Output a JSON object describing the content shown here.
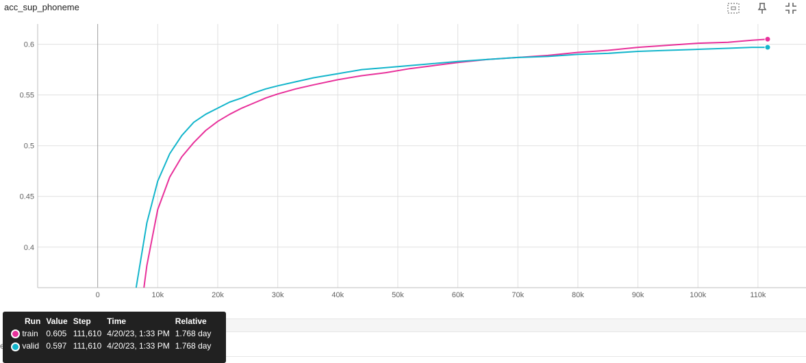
{
  "title": "acc_sup_phoneme",
  "toolbar": {
    "icons": [
      "fit-to-data-icon",
      "pin-icon",
      "fullscreen-icon"
    ]
  },
  "colors": {
    "train": "#e8309a",
    "valid": "#12b5cb"
  },
  "chart_data": {
    "type": "line",
    "xlim": [
      -10000,
      118000
    ],
    "ylim": [
      0.36,
      0.62
    ],
    "xticks": [
      0,
      10000,
      20000,
      30000,
      40000,
      50000,
      60000,
      70000,
      80000,
      90000,
      100000,
      110000
    ],
    "xtick_labels": [
      "0",
      "10k",
      "20k",
      "30k",
      "40k",
      "50k",
      "60k",
      "70k",
      "80k",
      "90k",
      "100k",
      "110k"
    ],
    "yticks": [
      0.4,
      0.45,
      0.5,
      0.55,
      0.6
    ],
    "ytick_labels": [
      "0.4",
      "0.45",
      "0.5",
      "0.55",
      "0.6"
    ],
    "grid": true,
    "series": [
      {
        "name": "train",
        "color": "#e8309a",
        "x": [
          7700,
          8200,
          10000,
          12000,
          14000,
          16000,
          18000,
          20000,
          22000,
          24000,
          26000,
          28000,
          30000,
          33000,
          36000,
          40000,
          44000,
          48000,
          52000,
          56000,
          60000,
          65000,
          70000,
          75000,
          80000,
          85000,
          90000,
          95000,
          100000,
          105000,
          109000,
          111610
        ],
        "values": [
          0.36,
          0.382,
          0.437,
          0.469,
          0.489,
          0.503,
          0.515,
          0.524,
          0.531,
          0.537,
          0.542,
          0.547,
          0.551,
          0.556,
          0.56,
          0.565,
          0.569,
          0.572,
          0.576,
          0.579,
          0.582,
          0.585,
          0.587,
          0.589,
          0.592,
          0.594,
          0.597,
          0.599,
          0.601,
          0.602,
          0.604,
          0.605
        ]
      },
      {
        "name": "valid",
        "color": "#12b5cb",
        "x": [
          6400,
          8200,
          10000,
          12000,
          14000,
          16000,
          18000,
          20000,
          22000,
          24000,
          26000,
          28000,
          30000,
          33000,
          36000,
          40000,
          44000,
          48000,
          52000,
          56000,
          60000,
          65000,
          70000,
          75000,
          80000,
          85000,
          90000,
          95000,
          100000,
          105000,
          109000,
          111610
        ],
        "values": [
          0.36,
          0.424,
          0.465,
          0.492,
          0.51,
          0.523,
          0.531,
          0.537,
          0.543,
          0.547,
          0.552,
          0.556,
          0.559,
          0.563,
          0.567,
          0.571,
          0.575,
          0.577,
          0.579,
          0.581,
          0.583,
          0.585,
          0.587,
          0.588,
          0.59,
          0.591,
          0.593,
          0.594,
          0.595,
          0.596,
          0.597,
          0.597
        ]
      }
    ]
  },
  "tooltip": {
    "headers": [
      "Run",
      "Value",
      "Step",
      "Time",
      "Relative"
    ],
    "rows": [
      {
        "run": "train",
        "value": "0.605",
        "step": "111,610",
        "time": "4/20/23, 1:33 PM",
        "relative": "1.768 day"
      },
      {
        "run": "valid",
        "value": "0.597",
        "step": "111,610",
        "time": "4/20/23, 1:33 PM",
        "relative": "1.768 day"
      }
    ]
  }
}
